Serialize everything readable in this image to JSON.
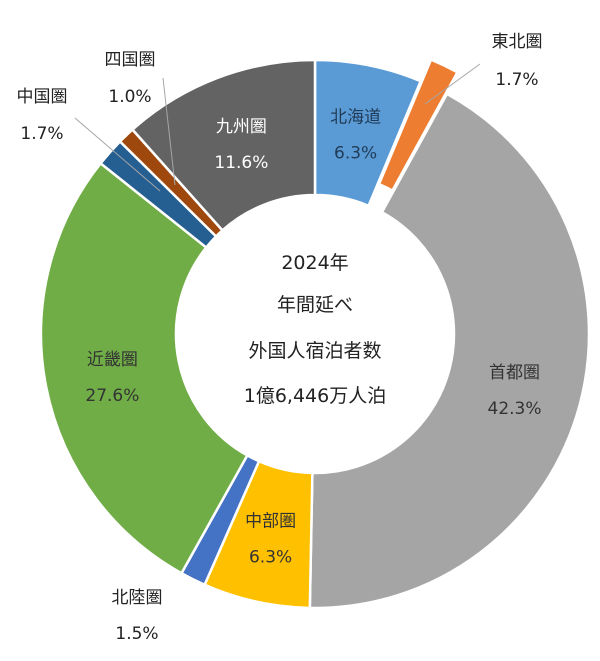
{
  "chart_data": {
    "type": "pie",
    "variant": "donut",
    "center_lines": [
      "2024年",
      "年間延べ",
      "外国人宿泊者数",
      "1億6,446万人泊"
    ],
    "slices": [
      {
        "name": "北海道",
        "value": 6.3,
        "label": "6.3%",
        "color": "#5b9bd5",
        "exploded": false,
        "labelpos": "inside",
        "textcolor": "#1f3b57"
      },
      {
        "name": "東北圏",
        "value": 1.7,
        "label": "1.7%",
        "color": "#ed7d31",
        "exploded": true,
        "labelpos": "outside",
        "textcolor": "#222222"
      },
      {
        "name": "首都圏",
        "value": 42.3,
        "label": "42.3%",
        "color": "#a5a5a5",
        "exploded": false,
        "labelpos": "inside",
        "textcolor": "#333333"
      },
      {
        "name": "中部圏",
        "value": 6.3,
        "label": "6.3%",
        "color": "#ffc000",
        "exploded": false,
        "labelpos": "inside",
        "textcolor": "#333333"
      },
      {
        "name": "北陸圏",
        "value": 1.5,
        "label": "1.5%",
        "color": "#4472c4",
        "exploded": false,
        "labelpos": "outside",
        "textcolor": "#222222"
      },
      {
        "name": "近畿圏",
        "value": 27.6,
        "label": "27.6%",
        "color": "#70ad47",
        "exploded": false,
        "labelpos": "inside",
        "textcolor": "#333333"
      },
      {
        "name": "中国圏",
        "value": 1.7,
        "label": "1.7%",
        "color": "#255e91",
        "exploded": false,
        "labelpos": "outside",
        "textcolor": "#222222"
      },
      {
        "name": "四国圏",
        "value": 1.0,
        "label": "1.0%",
        "color": "#9e480e",
        "exploded": false,
        "labelpos": "outside",
        "textcolor": "#222222"
      },
      {
        "name": "九州圏",
        "value": 11.6,
        "label": "11.6%",
        "color": "#636363",
        "exploded": false,
        "labelpos": "inside",
        "textcolor": "#ffffff"
      }
    ]
  }
}
